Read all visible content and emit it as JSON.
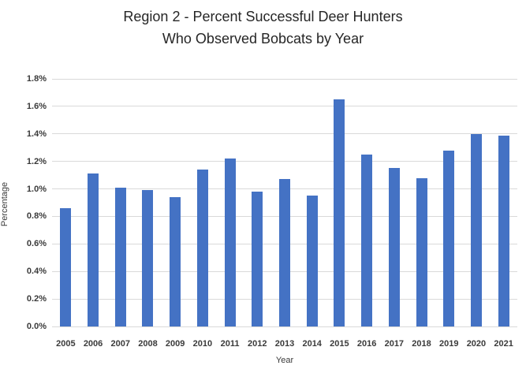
{
  "chart_data": {
    "type": "bar",
    "title": "Region 2 - Percent Successful Deer Hunters Who Observed Bobcats by Year",
    "title_lines": [
      "Region 2 - Percent Successful Deer Hunters",
      "Who Observed Bobcats by Year"
    ],
    "xlabel": "Year",
    "ylabel": "Percentage",
    "categories": [
      "2005",
      "2006",
      "2007",
      "2008",
      "2009",
      "2010",
      "2011",
      "2012",
      "2013",
      "2014",
      "2015",
      "2016",
      "2017",
      "2018",
      "2019",
      "2020",
      "2021"
    ],
    "values": [
      0.86,
      1.11,
      1.01,
      0.99,
      0.94,
      1.14,
      1.22,
      0.98,
      1.07,
      0.95,
      1.65,
      1.25,
      1.15,
      1.08,
      1.28,
      1.4,
      1.39
    ],
    "value_unit": "%",
    "ylim": [
      0,
      1.8
    ],
    "ytick_step": 0.2,
    "ytick_labels": [
      "0.0%",
      "0.2%",
      "0.4%",
      "0.6%",
      "0.8%",
      "1.0%",
      "1.2%",
      "1.4%",
      "1.6%",
      "1.8%"
    ],
    "grid": true,
    "legend": "none",
    "colors": {
      "bar": "#4472C4",
      "gridline": "#D9D9D9",
      "axis_line": "#D9D9D9",
      "tick_text": "#3A3A3A",
      "title_text": "#262626",
      "background": "#FFFFFF"
    }
  }
}
